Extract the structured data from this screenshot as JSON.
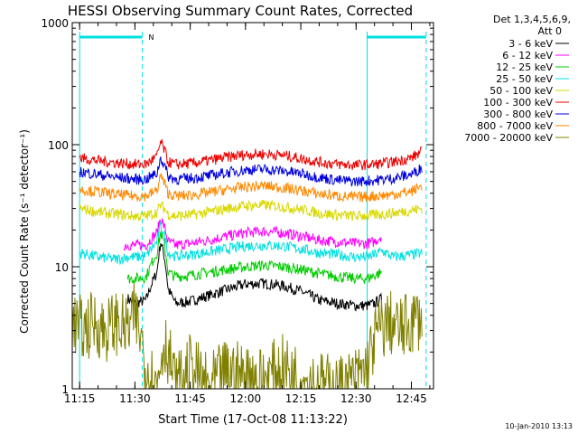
{
  "title": "HESSI Observing Summary Count Rates, Corrected",
  "footer_timestamp": "10-Jan-2010 13:13",
  "chart_data": {
    "type": "line",
    "title": "HESSI Observing Summary Count Rates, Corrected",
    "xlabel": "Start Time (17-Oct-08 11:13:22)",
    "ylabel": "Corrected Count Rate (s⁻¹ detector⁻¹)",
    "y_scale": "log",
    "ylim": [
      1,
      1000
    ],
    "xlim": [
      "11:13",
      "12:51"
    ],
    "x_ticks": [
      "11:15",
      "11:30",
      "11:45",
      "12:00",
      "12:15",
      "12:30",
      "12:45"
    ],
    "y_ticks": [
      "1",
      "10",
      "100",
      "1000"
    ],
    "grid": false,
    "legend_placement": "right",
    "legend_header": [
      "Det 1,3,4,5,6,9,",
      "Att 0"
    ],
    "annotations": [
      "N"
    ],
    "night_intervals": [
      {
        "start": "11:15",
        "end": "11:32"
      },
      {
        "start": "12:33",
        "end": "12:49"
      }
    ],
    "series": [
      {
        "name": "3 - 6 keV",
        "color": "#000000",
        "x": [
          "11:28",
          "11:30",
          "11:33",
          "11:36",
          "11:37",
          "11:38",
          "11:39",
          "11:41",
          "11:45",
          "11:50",
          "11:55",
          "12:00",
          "12:05",
          "12:10",
          "12:15",
          "12:20",
          "12:25",
          "12:30",
          "12:33",
          "12:35",
          "12:37"
        ],
        "values": [
          5.5,
          5,
          5.3,
          9,
          16,
          12,
          6.5,
          5,
          5.2,
          5.8,
          6.5,
          7.2,
          7.3,
          7,
          6.3,
          5.3,
          5,
          4.8,
          4.8,
          5,
          5.5
        ]
      },
      {
        "name": "6 - 12 keV",
        "color": "#ff00ff",
        "x": [
          "11:27",
          "11:30",
          "11:33",
          "11:36",
          "11:37",
          "11:38",
          "11:39",
          "11:41",
          "11:45",
          "11:50",
          "11:55",
          "12:00",
          "12:05",
          "12:10",
          "12:15",
          "12:20",
          "12:25",
          "12:30",
          "12:33",
          "12:35",
          "12:37"
        ],
        "values": [
          15,
          15,
          15,
          19,
          25,
          21,
          16,
          15,
          15.5,
          16.5,
          17.8,
          19,
          19.5,
          19,
          17.8,
          16.5,
          16,
          15.5,
          15.5,
          16,
          18
        ]
      },
      {
        "name": "12 - 25 keV",
        "color": "#00cc00",
        "x": [
          "11:28",
          "11:30",
          "11:33",
          "11:36",
          "11:37",
          "11:38",
          "11:39",
          "11:41",
          "11:45",
          "11:50",
          "11:55",
          "12:00",
          "12:05",
          "12:10",
          "12:15",
          "12:20",
          "12:25",
          "12:30",
          "12:33",
          "12:35",
          "12:37"
        ],
        "values": [
          8,
          8,
          8.2,
          13,
          19,
          15,
          9,
          8.3,
          8.5,
          9,
          9.5,
          10,
          10.3,
          10,
          9.5,
          8.8,
          8.3,
          8,
          8,
          8.5,
          9
        ]
      },
      {
        "name": "25 - 50 keV",
        "color": "#00e0e0",
        "x": [
          "11:15",
          "11:20",
          "11:25",
          "11:28",
          "11:30",
          "11:33",
          "11:36",
          "11:37",
          "11:38",
          "11:39",
          "11:41",
          "11:45",
          "11:50",
          "11:55",
          "12:00",
          "12:05",
          "12:10",
          "12:15",
          "12:20",
          "12:25",
          "12:30",
          "12:33",
          "12:35",
          "12:37",
          "12:40",
          "12:45",
          "12:48"
        ],
        "values": [
          13,
          12,
          11.5,
          12,
          12,
          12.2,
          16,
          22,
          18,
          13,
          12.2,
          12.5,
          13.2,
          14,
          14.8,
          15,
          14.8,
          14,
          13,
          12.5,
          12,
          12,
          12.5,
          13.5,
          12,
          12.5,
          13
        ]
      },
      {
        "name": "50 - 100 keV",
        "color": "#d8d800",
        "x": [
          "11:15",
          "11:20",
          "11:25",
          "11:30",
          "11:33",
          "11:36",
          "11:37",
          "11:38",
          "11:39",
          "11:41",
          "11:45",
          "11:50",
          "11:55",
          "12:00",
          "12:05",
          "12:10",
          "12:15",
          "12:20",
          "12:25",
          "12:30",
          "12:35",
          "12:40",
          "12:45",
          "12:48"
        ],
        "values": [
          30,
          28,
          27,
          26,
          26,
          28,
          32,
          30,
          27,
          26,
          26.5,
          28,
          30,
          31.5,
          32,
          31,
          29.5,
          27.5,
          26.5,
          26,
          26.5,
          27.5,
          29,
          30
        ]
      },
      {
        "name": "100 - 300 keV",
        "color": "#ee0000",
        "x": [
          "11:15",
          "11:20",
          "11:25",
          "11:30",
          "11:33",
          "11:36",
          "11:37",
          "11:38",
          "11:39",
          "11:41",
          "11:45",
          "11:50",
          "11:55",
          "12:00",
          "12:05",
          "12:10",
          "12:15",
          "12:20",
          "12:25",
          "12:30",
          "12:35",
          "12:40",
          "12:45",
          "12:48"
        ],
        "values": [
          78,
          74,
          71,
          69,
          69,
          80,
          105,
          90,
          72,
          69,
          70,
          74,
          79,
          83,
          84,
          82,
          77,
          72,
          69,
          68,
          69,
          72,
          78,
          88
        ]
      },
      {
        "name": "300 - 800 keV",
        "color": "#0000dd",
        "x": [
          "11:15",
          "11:20",
          "11:25",
          "11:30",
          "11:33",
          "11:36",
          "11:37",
          "11:38",
          "11:39",
          "11:41",
          "11:45",
          "11:50",
          "11:55",
          "12:00",
          "12:05",
          "12:10",
          "12:15",
          "12:20",
          "12:25",
          "12:30",
          "12:35",
          "12:40",
          "12:45",
          "12:48"
        ],
        "values": [
          60,
          57,
          54,
          52,
          52,
          58,
          78,
          68,
          55,
          52,
          53,
          55.5,
          59,
          62,
          63,
          61,
          58,
          54,
          51,
          50,
          51,
          53,
          57,
          65
        ]
      },
      {
        "name": "800 - 7000 keV",
        "color": "#ff8800",
        "x": [
          "11:15",
          "11:20",
          "11:25",
          "11:30",
          "11:33",
          "11:36",
          "11:37",
          "11:38",
          "11:39",
          "11:41",
          "11:45",
          "11:50",
          "11:55",
          "12:00",
          "12:05",
          "12:10",
          "12:15",
          "12:20",
          "12:25",
          "12:30",
          "12:35",
          "12:40",
          "12:45",
          "12:48"
        ],
        "values": [
          43,
          41,
          39,
          38,
          38,
          42,
          56,
          48,
          40,
          38,
          38.5,
          40.5,
          43,
          45,
          46,
          44.5,
          42,
          39.5,
          38,
          37,
          38,
          39,
          41.5,
          46
        ]
      },
      {
        "name": "7000 - 20000 keV",
        "color": "#808000",
        "x": [
          "11:13",
          "11:16",
          "11:19",
          "11:22",
          "11:25",
          "11:28",
          "11:30",
          "11:33",
          "11:36",
          "11:38",
          "11:41",
          "11:45",
          "11:50",
          "11:55",
          "12:00",
          "12:05",
          "12:10",
          "12:15",
          "12:20",
          "12:25",
          "12:30",
          "12:33",
          "12:36",
          "12:39",
          "12:42",
          "12:45",
          "12:48"
        ],
        "values": [
          3.5,
          3,
          3.5,
          3,
          3.5,
          3,
          4,
          1.5,
          1,
          2.5,
          1,
          1.5,
          1,
          1.4,
          1.3,
          1.2,
          1.5,
          1.2,
          1.1,
          1,
          1.2,
          1.5,
          3,
          3.5,
          3,
          3.5,
          4
        ]
      }
    ]
  }
}
